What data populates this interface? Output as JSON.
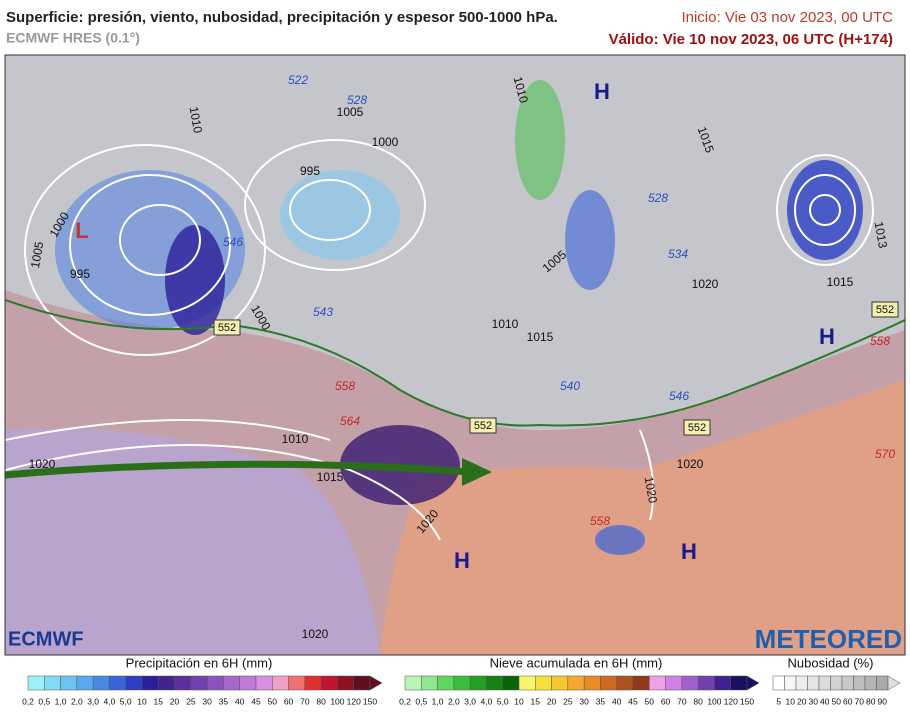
{
  "header": {
    "title": "Superficie: presión, viento, nubosidad, precipitación y espesor 500-1000 hPa.",
    "subtitle": "ECMWF HRES (0.1°)",
    "init": "Inicio: Vie 03 nov 2023, 00 UTC",
    "valid": "Válido: Vie 10 nov 2023, 06 UTC (H+174)"
  },
  "map": {
    "pressure_centers": [
      "H",
      "H",
      "H",
      "H",
      "L"
    ],
    "isobar_labels": [
      "1005",
      "1000",
      "995",
      "1010",
      "1010",
      "1015",
      "1005",
      "1000",
      "1000",
      "995",
      "1005",
      "1010",
      "1015",
      "1020",
      "1015",
      "1010",
      "1015",
      "1020",
      "1020",
      "1020",
      "1020",
      "1020",
      "1013"
    ],
    "thickness_labels": [
      "546",
      "543",
      "540",
      "546",
      "534",
      "528",
      "522",
      "528",
      "558",
      "564",
      "570",
      "558",
      "558"
    ],
    "boxed_labels": [
      "552",
      "552",
      "552",
      "552"
    ]
  },
  "logos": {
    "left": "ECMWF",
    "right": "METEORED"
  },
  "legends": {
    "precipitation": {
      "title": "Precipitación en 6H (mm)",
      "ticks": [
        "0,2",
        "0,5",
        "1,0",
        "2,0",
        "3,0",
        "4,0",
        "5,0",
        "10",
        "15",
        "20",
        "25",
        "30",
        "35",
        "40",
        "45",
        "50",
        "60",
        "70",
        "80",
        "100",
        "120",
        "150"
      ],
      "colors": [
        "#9ef0f8",
        "#7fdcf5",
        "#6cc4f2",
        "#5aa8ef",
        "#4a88e6",
        "#3a64d8",
        "#2a3fc4",
        "#2a1f9a",
        "#43238f",
        "#5b2f9e",
        "#7340b0",
        "#8c52c0",
        "#a766cc",
        "#c07ad6",
        "#d98fe0",
        "#f0a0c8",
        "#f07070",
        "#e03030",
        "#c01530",
        "#8f1025",
        "#5e1020"
      ]
    },
    "snow": {
      "title": "Nieve acumulada en 6H (mm)",
      "ticks": [
        "0,2",
        "0,5",
        "1,0",
        "2,0",
        "3,0",
        "4,0",
        "5,0",
        "10",
        "15",
        "20",
        "25",
        "30",
        "35",
        "40",
        "45",
        "50",
        "60",
        "70",
        "80",
        "100",
        "120",
        "150"
      ],
      "colors": [
        "#b8f5b8",
        "#8ee88e",
        "#5fd65f",
        "#3cbe3c",
        "#22a022",
        "#148214",
        "#0a640a",
        "#f5f56e",
        "#f5e040",
        "#f5c830",
        "#f5a830",
        "#e88a28",
        "#d06a20",
        "#b05020",
        "#8f3a1a",
        "#f0a0e8",
        "#d080e0",
        "#a060d0",
        "#7040b0",
        "#402090",
        "#1a1060"
      ]
    },
    "cloud": {
      "title": "Nubosidad (%)",
      "ticks": [
        "5",
        "10",
        "20",
        "30",
        "40",
        "50",
        "60",
        "70",
        "80",
        "90"
      ],
      "colors": [
        "#ffffff",
        "#f7f7f7",
        "#eeeeee",
        "#e5e5e5",
        "#dcdcdc",
        "#d2d2d2",
        "#c8c8c8",
        "#bebebe",
        "#b4b4b4",
        "#aaaaaa"
      ]
    }
  }
}
